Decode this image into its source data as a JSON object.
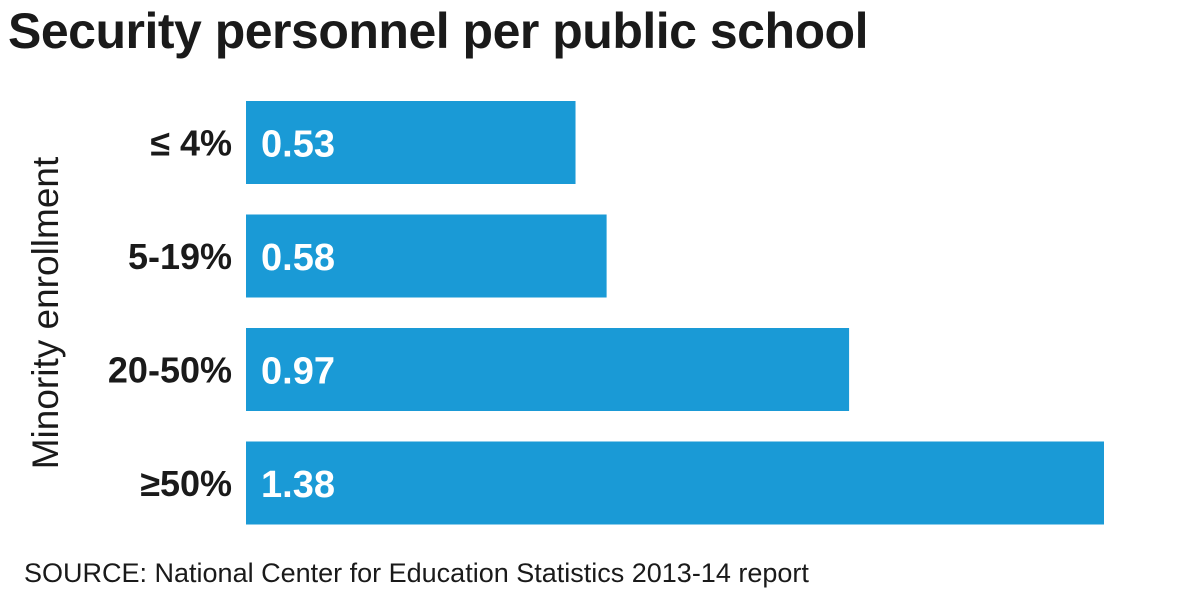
{
  "chart_data": {
    "type": "bar",
    "orientation": "horizontal",
    "title": "Security personnel per public school",
    "ylabel": "Minority enrollment",
    "xlabel": "",
    "categories": [
      "≤ 4%",
      "5-19%",
      "20-50%",
      "≥50%"
    ],
    "values": [
      0.53,
      0.58,
      0.97,
      1.38
    ],
    "value_labels": [
      "0.53",
      "0.58",
      "0.97",
      "1.38"
    ],
    "xlim": [
      0,
      1.38
    ],
    "grid": false,
    "bar_color": "#1a9ad6"
  },
  "source": "SOURCE: National Center for Education Statistics 2013-14 report"
}
